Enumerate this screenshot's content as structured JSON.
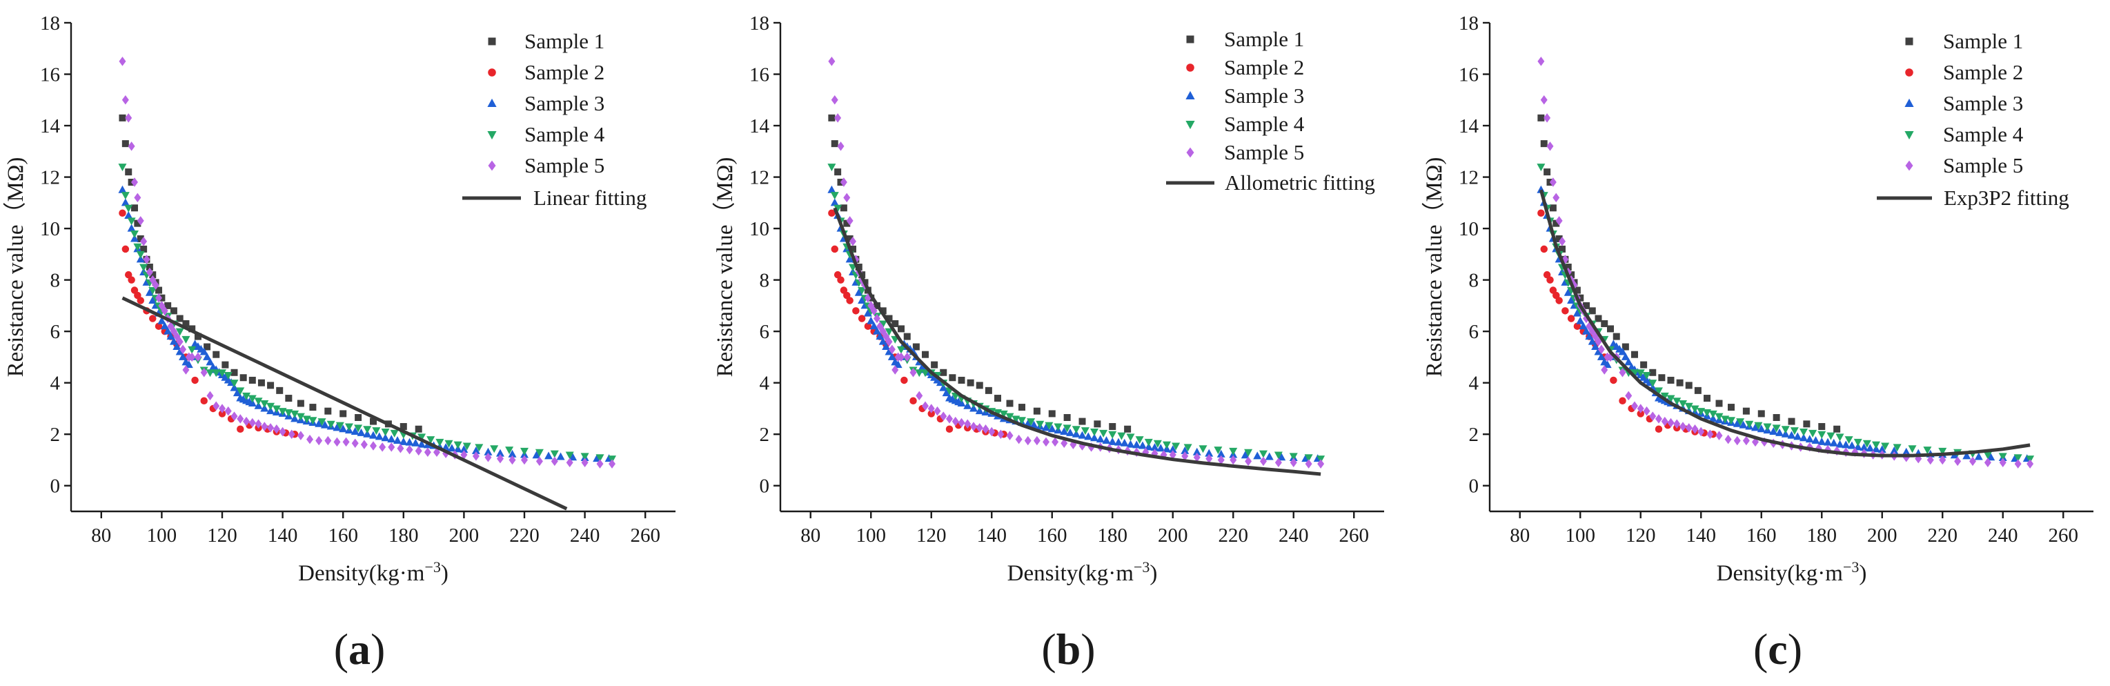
{
  "chart_data": [
    {
      "type": "scatter",
      "panel_label": "(a)",
      "xlabel": "Density(kg·m",
      "xlabel_exponent": "−3",
      "xlabel_close": ")",
      "ylabel": "Resistance value（MΩ)",
      "xlim": [
        70,
        270
      ],
      "ylim": [
        -1,
        18
      ],
      "xticks": [
        "80",
        "100",
        "120",
        "140",
        "160",
        "180",
        "200",
        "220",
        "240",
        "260"
      ],
      "yticks": [
        "0",
        "2",
        "4",
        "6",
        "8",
        "10",
        "12",
        "14",
        "16",
        "18"
      ],
      "legend_position": "top-right",
      "series_ref": "samples",
      "fit": {
        "name": "Linear fitting",
        "x": [
          87,
          234
        ],
        "y": [
          7.3,
          -0.9
        ]
      }
    },
    {
      "type": "scatter",
      "panel_label": "(b)",
      "xlabel": "Density(kg·m",
      "xlabel_exponent": "−3",
      "xlabel_close": ")",
      "ylabel": "Resistance value（MΩ)",
      "xlim": [
        70,
        270
      ],
      "ylim": [
        -1,
        18
      ],
      "xticks": [
        "80",
        "100",
        "120",
        "140",
        "160",
        "180",
        "200",
        "220",
        "240",
        "260"
      ],
      "yticks": [
        "0",
        "2",
        "4",
        "6",
        "8",
        "10",
        "12",
        "14",
        "16",
        "18"
      ],
      "legend_position": "top-right",
      "series_ref": "samples",
      "fit": {
        "name": "Allometric fitting",
        "x": [
          88,
          95,
          100,
          110,
          120,
          130,
          140,
          150,
          160,
          170,
          180,
          190,
          200,
          210,
          220,
          230,
          240,
          249
        ],
        "y": [
          10.8,
          8.6,
          7.4,
          5.6,
          4.4,
          3.5,
          2.85,
          2.35,
          1.95,
          1.65,
          1.4,
          1.2,
          1.02,
          0.88,
          0.76,
          0.65,
          0.55,
          0.45
        ]
      }
    },
    {
      "type": "scatter",
      "panel_label": "(c)",
      "xlabel": "Density(kg·m",
      "xlabel_exponent": "−3",
      "xlabel_close": ")",
      "ylabel": "Resistance value（MΩ)",
      "xlim": [
        70,
        270
      ],
      "ylim": [
        -1,
        18
      ],
      "xticks": [
        "80",
        "100",
        "120",
        "140",
        "160",
        "180",
        "200",
        "220",
        "240",
        "260"
      ],
      "yticks": [
        "0",
        "2",
        "4",
        "6",
        "8",
        "10",
        "12",
        "14",
        "16",
        "18"
      ],
      "legend_position": "top-right",
      "series_ref": "samples",
      "fit": {
        "name": "Exp3P2 fitting",
        "x": [
          87,
          92,
          100,
          110,
          120,
          130,
          140,
          150,
          160,
          170,
          180,
          190,
          200,
          210,
          220,
          230,
          240,
          249
        ],
        "y": [
          11.5,
          9.3,
          7.0,
          5.2,
          4.0,
          3.2,
          2.6,
          2.15,
          1.8,
          1.55,
          1.35,
          1.22,
          1.17,
          1.17,
          1.22,
          1.3,
          1.42,
          1.58
        ]
      }
    }
  ],
  "samples": [
    {
      "name": "Sample 1",
      "marker": "square",
      "color": "#404040",
      "x": [
        87,
        88,
        89,
        90,
        91,
        92,
        93,
        94,
        95,
        96,
        97,
        98,
        99,
        100,
        102,
        104,
        106,
        108,
        110,
        112,
        115,
        118,
        121,
        124,
        127,
        130,
        133,
        136,
        139,
        142,
        146,
        150,
        155,
        160,
        165,
        170,
        175,
        180,
        185
      ],
      "y": [
        14.3,
        13.3,
        12.2,
        11.8,
        10.8,
        10.2,
        9.6,
        9.2,
        8.8,
        8.5,
        8.2,
        7.9,
        7.6,
        7.3,
        7.0,
        6.8,
        6.5,
        6.3,
        6.1,
        5.8,
        5.4,
        5.1,
        4.7,
        4.4,
        4.2,
        4.1,
        4.0,
        3.9,
        3.7,
        3.4,
        3.2,
        3.05,
        2.9,
        2.8,
        2.65,
        2.5,
        2.4,
        2.3,
        2.2
      ]
    },
    {
      "name": "Sample 2",
      "marker": "circle",
      "color": "#e8252b",
      "x": [
        87,
        88,
        89,
        90,
        91,
        92,
        93,
        95,
        97,
        99,
        101,
        103,
        105,
        108,
        111,
        114,
        117,
        120,
        123,
        126,
        129,
        132,
        135,
        138,
        141,
        144
      ],
      "y": [
        10.6,
        9.2,
        8.2,
        8.0,
        7.6,
        7.4,
        7.2,
        6.8,
        6.5,
        6.2,
        6.0,
        5.8,
        5.5,
        5.0,
        4.1,
        3.3,
        3.0,
        2.8,
        2.6,
        2.2,
        2.35,
        2.25,
        2.2,
        2.1,
        2.05,
        2.0
      ]
    },
    {
      "name": "Sample 3",
      "marker": "triangle-up",
      "color": "#1f5fd6",
      "x": [
        87,
        88,
        89,
        90,
        91,
        92,
        93,
        94,
        95,
        96,
        97,
        98,
        99,
        100,
        101,
        102,
        103,
        104,
        105,
        106,
        107,
        108,
        109,
        110,
        111,
        112,
        113,
        114,
        115,
        116,
        117,
        118,
        119,
        120,
        121,
        122,
        123,
        124,
        125,
        126,
        127,
        128,
        129,
        130,
        132,
        134,
        136,
        138,
        140,
        142,
        144,
        146,
        148,
        150,
        152,
        154,
        156,
        158,
        160,
        162,
        164,
        166,
        168,
        170,
        172,
        174,
        176,
        178,
        180,
        182,
        184,
        186,
        188,
        190,
        192,
        194,
        196,
        198,
        200,
        204,
        208,
        212,
        216,
        220,
        224,
        228,
        232,
        236,
        240,
        244,
        248
      ],
      "y": [
        11.5,
        11.0,
        10.5,
        10.0,
        9.6,
        9.2,
        8.8,
        8.3,
        7.9,
        7.5,
        7.2,
        7.0,
        6.7,
        6.4,
        6.2,
        6.0,
        5.8,
        5.6,
        5.4,
        5.2,
        5.0,
        4.8,
        4.7,
        5.0,
        5.5,
        5.4,
        5.3,
        5.2,
        5.0,
        4.8,
        4.6,
        4.5,
        4.4,
        4.3,
        4.2,
        4.1,
        4.0,
        3.8,
        3.6,
        3.4,
        3.35,
        3.3,
        3.25,
        3.2,
        3.1,
        3.0,
        2.9,
        2.85,
        2.8,
        2.7,
        2.6,
        2.55,
        2.5,
        2.45,
        2.4,
        2.35,
        2.3,
        2.25,
        2.2,
        2.15,
        2.1,
        2.05,
        2.0,
        1.95,
        1.9,
        1.85,
        1.8,
        1.75,
        1.7,
        1.68,
        1.65,
        1.6,
        1.58,
        1.55,
        1.5,
        1.48,
        1.45,
        1.42,
        1.4,
        1.35,
        1.3,
        1.25,
        1.22,
        1.2,
        1.18,
        1.15,
        1.12,
        1.1,
        1.08,
        1.05,
        1.05
      ]
    },
    {
      "name": "Sample 4",
      "marker": "triangle-down",
      "color": "#24a865",
      "x": [
        87,
        88,
        89,
        90,
        91,
        92,
        93,
        94,
        95,
        96,
        97,
        98,
        99,
        100,
        102,
        104,
        106,
        108,
        110,
        112,
        114,
        116,
        118,
        120,
        122,
        124,
        126,
        128,
        130,
        132,
        134,
        136,
        138,
        140,
        142,
        144,
        146,
        148,
        150,
        153,
        156,
        159,
        162,
        165,
        168,
        171,
        174,
        177,
        180,
        183,
        186,
        189,
        192,
        195,
        198,
        201,
        205,
        210,
        215,
        220,
        225,
        230,
        235,
        240,
        245,
        249
      ],
      "y": [
        12.4,
        11.3,
        10.8,
        10.3,
        9.8,
        9.3,
        9.0,
        8.5,
        8.2,
        7.9,
        7.6,
        7.3,
        7.0,
        6.8,
        6.6,
        6.3,
        6.0,
        5.7,
        5.3,
        4.9,
        4.5,
        4.4,
        4.4,
        4.4,
        4.3,
        4.0,
        3.7,
        3.5,
        3.4,
        3.3,
        3.2,
        3.1,
        3.0,
        2.9,
        2.85,
        2.8,
        2.7,
        2.6,
        2.55,
        2.5,
        2.4,
        2.35,
        2.3,
        2.25,
        2.2,
        2.15,
        2.1,
        2.05,
        2.0,
        1.95,
        1.9,
        1.8,
        1.7,
        1.65,
        1.6,
        1.55,
        1.5,
        1.45,
        1.4,
        1.35,
        1.3,
        1.25,
        1.2,
        1.15,
        1.1,
        1.05
      ]
    },
    {
      "name": "Sample 5",
      "marker": "diamond",
      "color": "#b864e4",
      "x": [
        87,
        88,
        89,
        90,
        91,
        92,
        93,
        94,
        95,
        96,
        97,
        98,
        99,
        100,
        101,
        102,
        103,
        104,
        105,
        106,
        107,
        108,
        109,
        110,
        112,
        114,
        116,
        118,
        120,
        122,
        124,
        126,
        128,
        130,
        132,
        134,
        136,
        138,
        140,
        143,
        146,
        149,
        152,
        155,
        158,
        161,
        164,
        167,
        170,
        173,
        176,
        179,
        182,
        185,
        188,
        191,
        194,
        197,
        200,
        204,
        208,
        212,
        216,
        220,
        225,
        230,
        235,
        240,
        245,
        249
      ],
      "y": [
        16.5,
        15.0,
        14.3,
        13.2,
        11.8,
        11.2,
        10.3,
        9.5,
        8.8,
        8.3,
        8.0,
        7.8,
        7.3,
        7.0,
        6.8,
        6.5,
        6.2,
        6.0,
        5.8,
        5.6,
        5.3,
        4.5,
        5.0,
        5.0,
        5.0,
        4.4,
        3.5,
        3.1,
        3.0,
        2.9,
        2.7,
        2.6,
        2.5,
        2.45,
        2.4,
        2.3,
        2.25,
        2.2,
        2.1,
        2.0,
        1.95,
        1.8,
        1.75,
        1.75,
        1.7,
        1.7,
        1.65,
        1.6,
        1.55,
        1.5,
        1.5,
        1.45,
        1.4,
        1.35,
        1.3,
        1.3,
        1.25,
        1.2,
        1.2,
        1.15,
        1.1,
        1.05,
        1.0,
        1.0,
        0.95,
        0.95,
        0.9,
        0.9,
        0.85,
        0.85
      ]
    }
  ]
}
